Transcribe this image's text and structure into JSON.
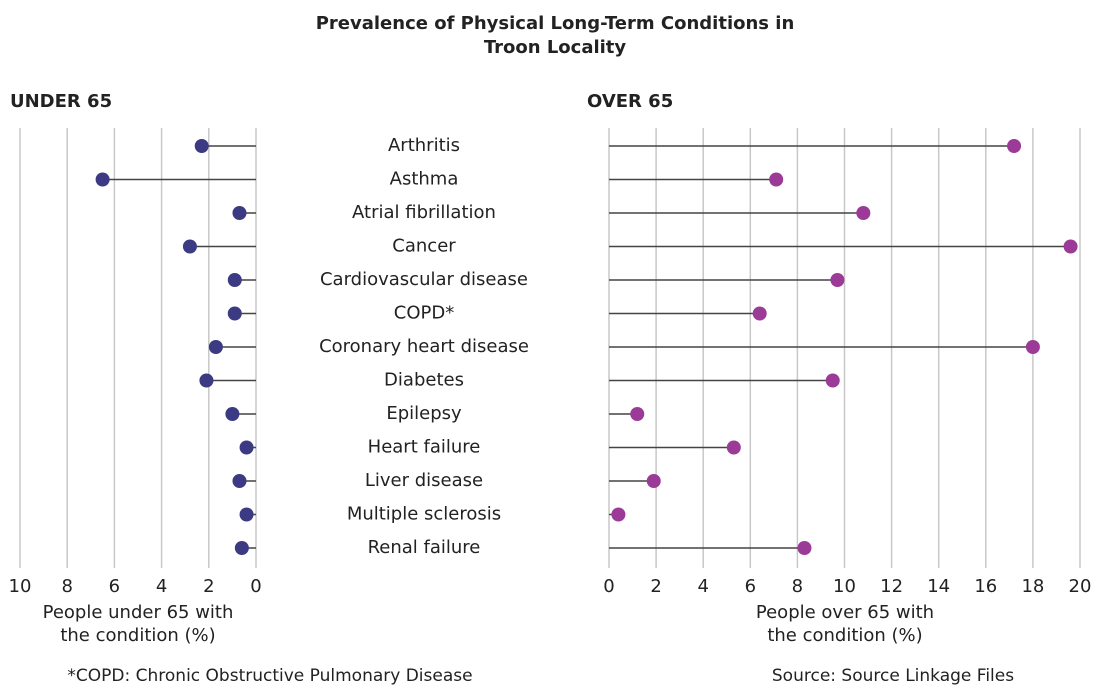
{
  "title": [
    "Prevalence of Physical Long-Term Conditions in",
    "Troon Locality"
  ],
  "chart_data": [
    {
      "type": "lollipop",
      "series_label": "UNDER 65",
      "color": "#3b3a82",
      "label_color": "#3f3a8a",
      "categories": [
        "Arthritis",
        "Asthma",
        "Atrial fibrillation",
        "Cancer",
        "Cardiovascular disease",
        "COPD*",
        "Coronary heart disease",
        "Diabetes",
        "Epilepsy",
        "Heart failure",
        "Liver disease",
        "Multiple sclerosis",
        "Renal failure"
      ],
      "values": [
        2.3,
        6.5,
        0.7,
        2.8,
        0.9,
        0.9,
        1.7,
        2.1,
        1.0,
        0.4,
        0.7,
        0.4,
        0.6
      ],
      "xlim": [
        10,
        0
      ],
      "xticks": [
        10,
        8,
        6,
        4,
        2,
        0
      ],
      "grid": true,
      "xlabel": [
        "People under 65 with",
        "the condition (%)"
      ]
    },
    {
      "type": "lollipop",
      "series_label": "OVER 65",
      "color": "#9b3b97",
      "label_color": "#9b3f9b",
      "values": [
        17.2,
        7.1,
        10.8,
        19.6,
        9.7,
        6.4,
        18.0,
        9.5,
        1.2,
        5.3,
        1.9,
        0.4,
        8.3
      ],
      "xlim": [
        0,
        20
      ],
      "xticks": [
        0,
        2,
        4,
        6,
        8,
        10,
        12,
        14,
        16,
        18,
        20
      ],
      "grid": true,
      "xlabel": [
        "People over 65 with",
        "the condition (%)"
      ]
    }
  ],
  "footnote": "*COPD: Chronic Obstructive Pulmonary Disease",
  "source": "Source: Source Linkage Files"
}
